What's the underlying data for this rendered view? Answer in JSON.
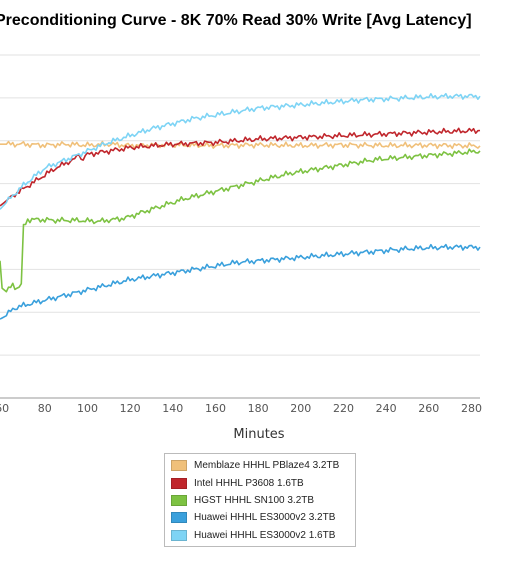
{
  "chart_data": {
    "type": "line",
    "title": "Preconditioning Curve - 8K 70% Read 30% Write [Avg Latency]",
    "xlabel": "Minutes",
    "ylabel": "",
    "x_ticks": [
      "60",
      "80",
      "100",
      "120",
      "140",
      "160",
      "180",
      "200",
      "220",
      "240",
      "260",
      "280"
    ],
    "xlim": [
      59,
      284
    ],
    "ylim": [
      0,
      10
    ],
    "grid": true,
    "legend_position": "bottom-center",
    "series": [
      {
        "name": "Memblaze HHHL PBlaze4 3.2TB",
        "color": "#F0C07A",
        "points": [
          [
            59,
            7.4
          ],
          [
            70,
            7.4
          ],
          [
            80,
            7.37
          ],
          [
            90,
            7.4
          ],
          [
            100,
            7.37
          ],
          [
            110,
            7.4
          ],
          [
            120,
            7.36
          ],
          [
            140,
            7.38
          ],
          [
            160,
            7.36
          ],
          [
            180,
            7.38
          ],
          [
            200,
            7.36
          ],
          [
            220,
            7.38
          ],
          [
            240,
            7.36
          ],
          [
            260,
            7.37
          ],
          [
            284,
            7.35
          ]
        ]
      },
      {
        "name": "Intel HHHL P3608 1.6TB",
        "color": "#C0262C",
        "points": [
          [
            59,
            5.6
          ],
          [
            65,
            5.9
          ],
          [
            70,
            6.1
          ],
          [
            75,
            6.3
          ],
          [
            80,
            6.5
          ],
          [
            85,
            6.7
          ],
          [
            90,
            6.85
          ],
          [
            95,
            7.0
          ],
          [
            96,
            7.15
          ],
          [
            97,
            6.95
          ],
          [
            100,
            7.1
          ],
          [
            110,
            7.2
          ],
          [
            120,
            7.3
          ],
          [
            130,
            7.35
          ],
          [
            140,
            7.4
          ],
          [
            160,
            7.45
          ],
          [
            180,
            7.55
          ],
          [
            200,
            7.6
          ],
          [
            220,
            7.65
          ],
          [
            240,
            7.7
          ],
          [
            260,
            7.75
          ],
          [
            284,
            7.8
          ]
        ]
      },
      {
        "name": "HGST HHHL SN100 3.2TB",
        "color": "#7DC242",
        "points": [
          [
            59,
            4.0
          ],
          [
            60,
            3.2
          ],
          [
            62,
            3.1
          ],
          [
            65,
            3.3
          ],
          [
            67,
            3.2
          ],
          [
            69,
            3.3
          ],
          [
            70,
            5.0
          ],
          [
            72,
            5.2
          ],
          [
            74,
            5.2
          ],
          [
            78,
            5.2
          ],
          [
            85,
            5.18
          ],
          [
            95,
            5.18
          ],
          [
            105,
            5.15
          ],
          [
            112,
            5.2
          ],
          [
            118,
            5.25
          ],
          [
            125,
            5.4
          ],
          [
            135,
            5.6
          ],
          [
            145,
            5.8
          ],
          [
            155,
            5.95
          ],
          [
            165,
            6.1
          ],
          [
            175,
            6.25
          ],
          [
            185,
            6.4
          ],
          [
            195,
            6.55
          ],
          [
            205,
            6.65
          ],
          [
            215,
            6.75
          ],
          [
            225,
            6.85
          ],
          [
            235,
            6.95
          ],
          [
            245,
            7.0
          ],
          [
            255,
            7.05
          ],
          [
            265,
            7.1
          ],
          [
            275,
            7.15
          ],
          [
            284,
            7.2
          ]
        ]
      },
      {
        "name": "Huawei HHHL ES3000v2 3.2TB",
        "color": "#3AA0DC",
        "points": [
          [
            59,
            2.3
          ],
          [
            62,
            2.4
          ],
          [
            65,
            2.6
          ],
          [
            70,
            2.7
          ],
          [
            80,
            2.85
          ],
          [
            90,
            3.0
          ],
          [
            100,
            3.15
          ],
          [
            110,
            3.3
          ],
          [
            120,
            3.45
          ],
          [
            130,
            3.55
          ],
          [
            140,
            3.65
          ],
          [
            150,
            3.75
          ],
          [
            160,
            3.85
          ],
          [
            170,
            3.95
          ],
          [
            180,
            4.0
          ],
          [
            190,
            4.05
          ],
          [
            200,
            4.1
          ],
          [
            210,
            4.15
          ],
          [
            220,
            4.2
          ],
          [
            230,
            4.25
          ],
          [
            240,
            4.3
          ],
          [
            250,
            4.35
          ],
          [
            260,
            4.38
          ],
          [
            270,
            4.4
          ],
          [
            284,
            4.4
          ]
        ]
      },
      {
        "name": "Huawei HHHL ES3000v2 1.6TB",
        "color": "#7ED4F5",
        "points": [
          [
            59,
            5.5
          ],
          [
            65,
            5.9
          ],
          [
            70,
            6.2
          ],
          [
            75,
            6.45
          ],
          [
            80,
            6.7
          ],
          [
            90,
            6.95
          ],
          [
            100,
            7.2
          ],
          [
            110,
            7.45
          ],
          [
            120,
            7.65
          ],
          [
            130,
            7.85
          ],
          [
            140,
            8.0
          ],
          [
            150,
            8.15
          ],
          [
            160,
            8.25
          ],
          [
            170,
            8.35
          ],
          [
            180,
            8.45
          ],
          [
            190,
            8.5
          ],
          [
            200,
            8.55
          ],
          [
            210,
            8.6
          ],
          [
            220,
            8.65
          ],
          [
            230,
            8.7
          ],
          [
            240,
            8.72
          ],
          [
            250,
            8.75
          ],
          [
            260,
            8.78
          ],
          [
            270,
            8.8
          ],
          [
            284,
            8.8
          ]
        ]
      }
    ]
  }
}
